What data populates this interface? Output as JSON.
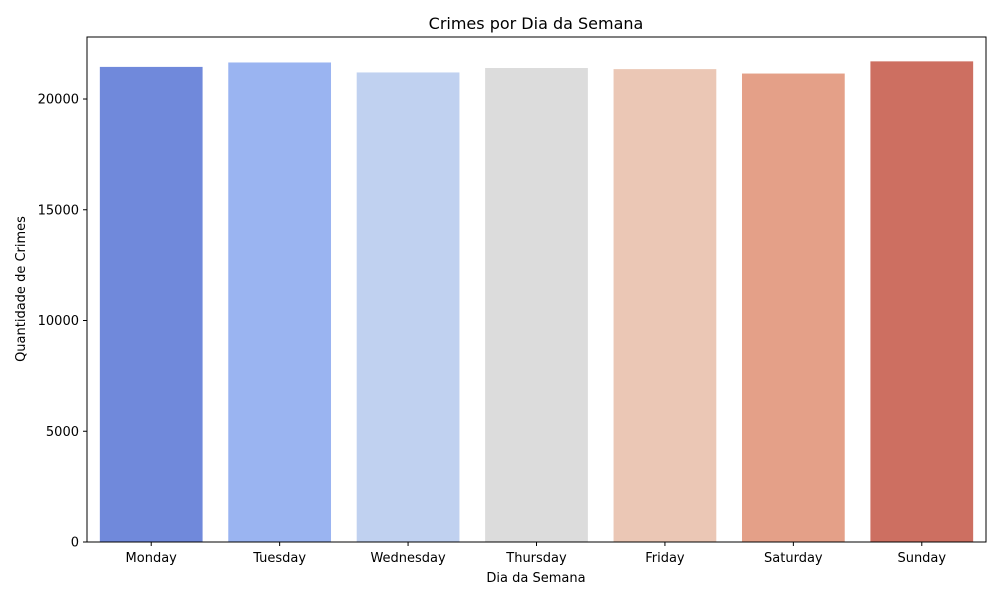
{
  "chart_data": {
    "type": "bar",
    "title": "Crimes por Dia da Semana",
    "xlabel": "Dia da Semana",
    "ylabel": "Quantidade de Crimes",
    "categories": [
      "Monday",
      "Tuesday",
      "Wednesday",
      "Thursday",
      "Friday",
      "Saturday",
      "Sunday"
    ],
    "values": [
      21450,
      21650,
      21200,
      21400,
      21350,
      21150,
      21700
    ],
    "colors": [
      "#7089db",
      "#9ab4f1",
      "#c0d1f0",
      "#dcdcdc",
      "#ebc7b5",
      "#e4a088",
      "#cd6f61"
    ],
    "ylim": [
      0,
      22800
    ],
    "yticks": [
      0,
      5000,
      10000,
      15000,
      20000
    ],
    "grid": false,
    "legend": "none"
  }
}
